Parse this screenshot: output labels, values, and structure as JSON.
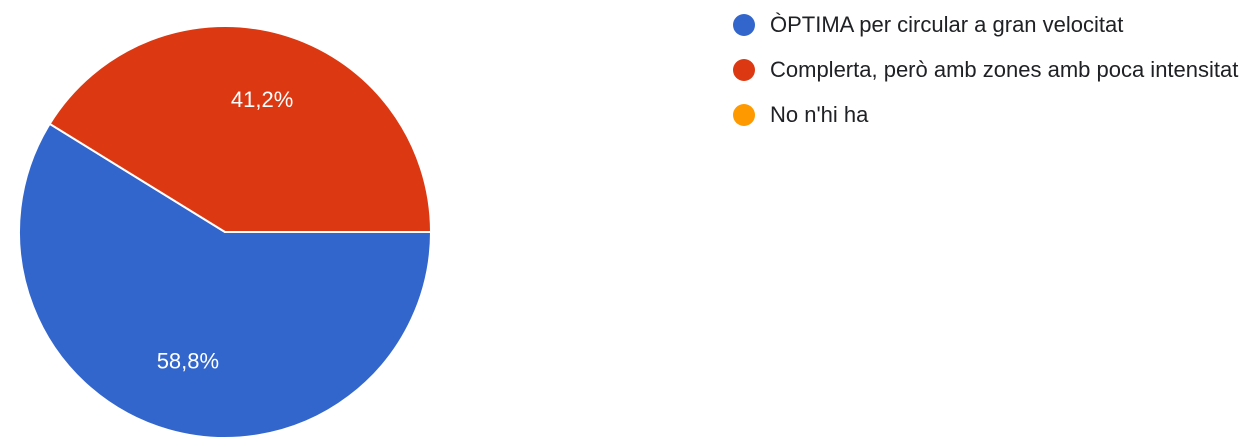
{
  "chart_data": {
    "type": "pie",
    "categories": [
      "ÒPTIMA per circular a gran velocitat",
      "Complerta, però amb zones amb poca intensitat",
      "No n'hi ha"
    ],
    "values": [
      58.8,
      41.2,
      0
    ],
    "value_labels": [
      "58,8%",
      "41,2%",
      ""
    ],
    "colors": [
      "#3366cc",
      "#dc3912",
      "#ff9900"
    ],
    "legend_position": "right",
    "title": ""
  },
  "legend": {
    "items": [
      {
        "label": "ÒPTIMA per circular a gran velocitat",
        "color": "#3366cc"
      },
      {
        "label": "Complerta, però amb zones amb poca intensitat",
        "color": "#dc3912"
      },
      {
        "label": "No n'hi ha",
        "color": "#ff9900"
      }
    ]
  }
}
